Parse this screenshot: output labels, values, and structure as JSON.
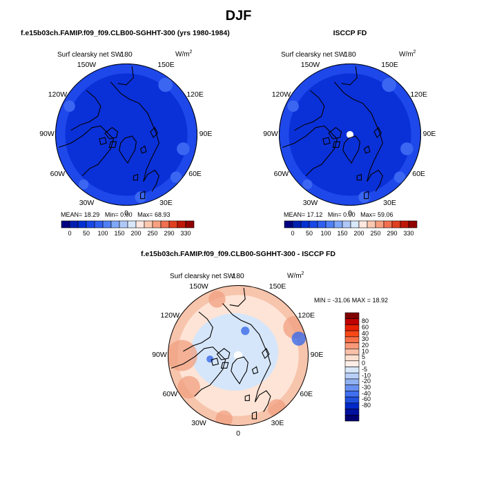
{
  "page": {
    "title": "DJF"
  },
  "chart_data": [
    {
      "type": "heatmap",
      "projection": "north-polar-stereographic",
      "panel_title": "f.e15b03ch.FAMIP.f09_f09.CLB00-SGHHT-300 (yrs 1980-1984)",
      "label": "Surf clearsky net SW",
      "units_base": "W/m",
      "units_exp": "2",
      "lon_labels": {
        "top": "180",
        "tl": "150W",
        "tr": "150E",
        "ul": "120W",
        "ur": "120E",
        "l": "90W",
        "r": "90E",
        "ll": "60W",
        "lr": "60E",
        "bl": "30W",
        "br": "30E",
        "bottom": "0"
      },
      "stats": {
        "mean_label": "MEAN=",
        "mean": "18.29",
        "min_label": "Min=",
        "min": "0.00",
        "max_label": "Max=",
        "max": "68.93"
      },
      "colorbar": {
        "colors": [
          "#000080",
          "#0020b0",
          "#0030d0",
          "#1848e8",
          "#3060f0",
          "#5080f5",
          "#80a8f8",
          "#b0c8f8",
          "#d8e8fa",
          "#ffe8e0",
          "#fcc8b0",
          "#f8a080",
          "#f07050",
          "#e04020",
          "#c01808",
          "#900000"
        ],
        "tick_labels": [
          "0",
          "50",
          "100",
          "150",
          "200",
          "250",
          "290",
          "330"
        ]
      },
      "map_colors": {
        "field": "#0a30d8",
        "ocean_edge": "#1e48ea",
        "patch": "#3a66f2",
        "coast": "#000000"
      }
    },
    {
      "type": "heatmap",
      "projection": "north-polar-stereographic",
      "panel_title": "ISCCP FD",
      "label": "Surf clearsky net SW",
      "units_base": "W/m",
      "units_exp": "2",
      "lon_labels": {
        "top": "180",
        "tl": "150W",
        "tr": "150E",
        "ul": "120W",
        "ur": "120E",
        "l": "90W",
        "r": "90E",
        "ll": "60W",
        "lr": "60E",
        "bl": "30W",
        "br": "30E",
        "bottom": "0"
      },
      "stats": {
        "mean_label": "MEAN=",
        "mean": "17.12",
        "min_label": "Min=",
        "min": "0.00",
        "max_label": "Max=",
        "max": "59.06"
      },
      "colorbar": {
        "colors": [
          "#000080",
          "#0020b0",
          "#0030d0",
          "#1848e8",
          "#3060f0",
          "#5080f5",
          "#80a8f8",
          "#b0c8f8",
          "#d8e8fa",
          "#ffe8e0",
          "#fcc8b0",
          "#f8a080",
          "#f07050",
          "#e04020",
          "#c01808",
          "#900000"
        ],
        "tick_labels": [
          "0",
          "50",
          "100",
          "150",
          "200",
          "250",
          "290",
          "330"
        ]
      },
      "map_colors": {
        "field": "#0a30d8",
        "ocean_edge": "#1e48ea",
        "patch": "#3a66f2",
        "coast": "#000000"
      }
    },
    {
      "type": "heatmap",
      "projection": "north-polar-stereographic",
      "panel_title": "f.e15b03ch.FAMIP.f09_f09.CLB00-SGHHT-300 - ISCCP FD",
      "label": "Surf clearsky net SW",
      "units_base": "W/m",
      "units_exp": "2",
      "lon_labels": {
        "top": "180",
        "tl": "150W",
        "tr": "150E",
        "ul": "120W",
        "ur": "120E",
        "l": "90W",
        "r": "90E",
        "ll": "60W",
        "lr": "60E",
        "bl": "30W",
        "br": "30E",
        "bottom": "0"
      },
      "stats_line": "MIN = -31.06  MAX =  18.92",
      "colorbar": {
        "colors": [
          "#800000",
          "#c00000",
          "#e82000",
          "#f84818",
          "#f87048",
          "#f89878",
          "#f8c0a8",
          "#fce0d0",
          "#ffeee8",
          "#d8e8fa",
          "#b8d0f8",
          "#90b0f0",
          "#6890f0",
          "#4070f0",
          "#2050e0",
          "#0028c8",
          "#0010a0",
          "#000070"
        ],
        "tick_labels": [
          "80",
          "60",
          "40",
          "30",
          "20",
          "10",
          "5",
          "0",
          "-5",
          "-10",
          "-20",
          "-30",
          "-40",
          "-60",
          "-80"
        ]
      },
      "map_colors": {
        "field": "#fde4d6",
        "ocean_edge": "#f7c4ac",
        "patch": "#d6e6fa",
        "warm": "#f0a080",
        "cool": "#3a6ae8",
        "coast": "#000000"
      }
    }
  ]
}
